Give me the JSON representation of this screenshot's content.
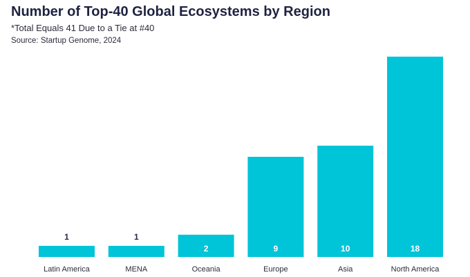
{
  "chart_data": {
    "type": "bar",
    "title": "Number of Top-40 Global Ecosystems by Region",
    "subtitle": "*Total Equals 41 Due to a Tie at #40",
    "source": "Source: Startup Genome, 2024",
    "categories": [
      "Latin America",
      "MENA",
      "Oceania",
      "Europe",
      "Asia",
      "North America"
    ],
    "values": [
      1,
      1,
      2,
      9,
      10,
      18
    ],
    "ylim": [
      0,
      18
    ],
    "grid": false,
    "legend": "none",
    "colors": {
      "bar": "#00c4d8",
      "label_inside": "#ffffff",
      "label_outside": "#23284f",
      "tick_label": "#2b2b3a",
      "title": "#1f2340"
    }
  }
}
